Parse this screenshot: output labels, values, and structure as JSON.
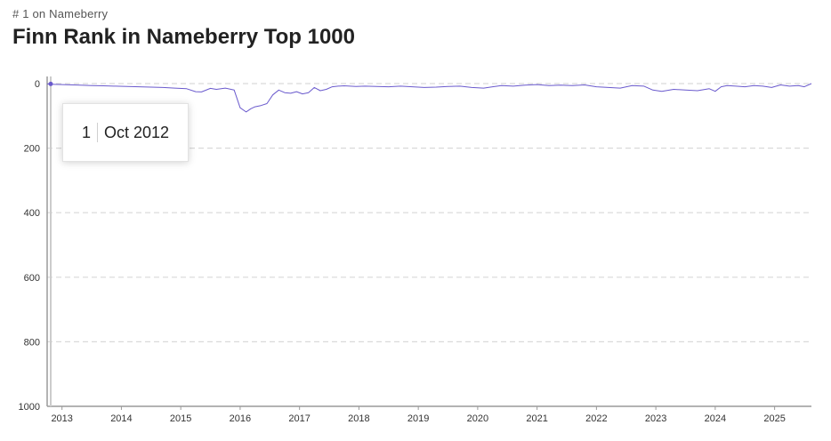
{
  "header": {
    "eyebrow": "# 1 on Nameberry",
    "title": "Finn Rank in Nameberry Top 1000"
  },
  "tooltip": {
    "rank": "1",
    "date": "Oct 2012"
  },
  "colors": {
    "line": "#6a5acd",
    "grid": "#d9d9d9",
    "axis": "#9a9a9a",
    "cursor": "#cccccc"
  },
  "chart_data": {
    "type": "line",
    "title": "Finn Rank in Nameberry Top 1000",
    "xlabel": "",
    "ylabel": "",
    "y_inverted": true,
    "ylim": [
      0,
      1000
    ],
    "xlim": [
      2012.75,
      2025.62
    ],
    "grid": "horizontal dashed",
    "x_ticks": [
      "2013",
      "2014",
      "2015",
      "2016",
      "2017",
      "2018",
      "2019",
      "2020",
      "2021",
      "2022",
      "2023",
      "2024",
      "2025"
    ],
    "y_ticks": [
      "0",
      "200",
      "400",
      "600",
      "800",
      "1000"
    ],
    "series": [
      {
        "x": [
          2012.75,
          2012.8,
          2013.0,
          2013.3,
          2013.5,
          2013.7,
          2013.9,
          2014.1,
          2014.3,
          2014.5,
          2014.7,
          2014.9,
          2015.1,
          2015.25,
          2015.35,
          2015.5,
          2015.6,
          2015.75,
          2015.9,
          2016.0,
          2016.1,
          2016.18,
          2016.25,
          2016.35,
          2016.45,
          2016.55,
          2016.65,
          2016.75,
          2016.85,
          2016.95,
          2017.05,
          2017.15,
          2017.25,
          2017.35,
          2017.45,
          2017.55,
          2017.65,
          2017.75,
          2017.85,
          2017.95,
          2018.1,
          2018.3,
          2018.5,
          2018.7,
          2018.9,
          2019.1,
          2019.3,
          2019.5,
          2019.7,
          2019.9,
          2020.1,
          2020.25,
          2020.4,
          2020.6,
          2020.8,
          2021.0,
          2021.2,
          2021.4,
          2021.6,
          2021.8,
          2022.0,
          2022.2,
          2022.4,
          2022.6,
          2022.8,
          2022.95,
          2023.1,
          2023.3,
          2023.5,
          2023.7,
          2023.9,
          2024.0,
          2024.1,
          2024.2,
          2024.35,
          2024.5,
          2024.65,
          2024.8,
          2024.95,
          2025.1,
          2025.25,
          2025.4,
          2025.5,
          2025.62
        ],
        "values": [
          1,
          2,
          3,
          5,
          6,
          7,
          8,
          9,
          10,
          11,
          12,
          14,
          16,
          25,
          26,
          15,
          18,
          14,
          20,
          75,
          88,
          78,
          72,
          68,
          62,
          35,
          20,
          28,
          30,
          25,
          32,
          28,
          12,
          22,
          18,
          10,
          8,
          7,
          8,
          9,
          8,
          9,
          10,
          8,
          10,
          12,
          11,
          9,
          8,
          12,
          14,
          10,
          6,
          8,
          5,
          3,
          6,
          5,
          6,
          4,
          10,
          12,
          14,
          6,
          8,
          20,
          24,
          18,
          20,
          22,
          16,
          24,
          10,
          6,
          8,
          10,
          6,
          8,
          12,
          4,
          8,
          6,
          10,
          0
        ]
      }
    ]
  }
}
